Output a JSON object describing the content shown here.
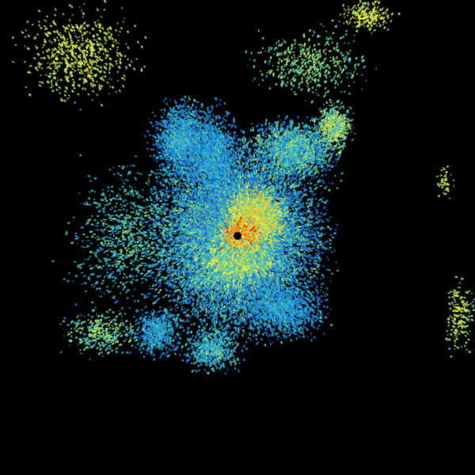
{
  "image": {
    "kind": "radar reflectivity composite",
    "background": "#000000",
    "palette": [
      "#1f5fbf",
      "#1e88d8",
      "#2fb0d0",
      "#5cc8a8",
      "#a8dc6a",
      "#e8e84a",
      "#f0c020",
      "#f08010",
      "#e03010",
      "#b00000"
    ],
    "center_marker_color": "#000000"
  }
}
